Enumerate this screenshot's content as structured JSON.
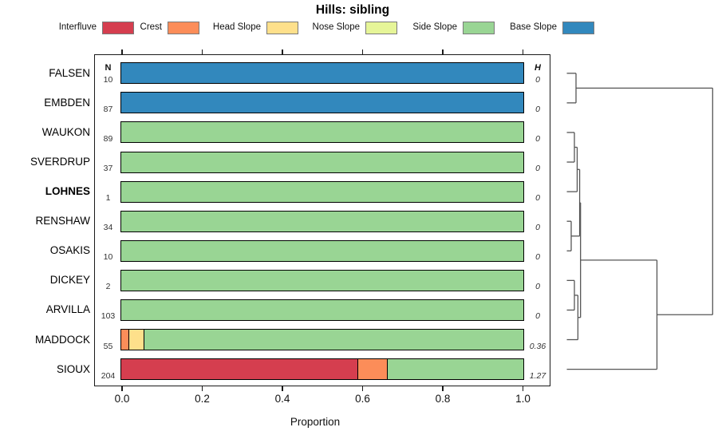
{
  "chart_data": {
    "type": "bar",
    "orientation": "horizontal-stacked",
    "title": "Hills: sibling",
    "xlabel": "Proportion",
    "xlim": [
      0,
      1
    ],
    "xticks": [
      0.0,
      0.2,
      0.4,
      0.6,
      0.8,
      1.0
    ],
    "xtick_labels": [
      "0.0",
      "0.2",
      "0.4",
      "0.6",
      "0.8",
      "1.0"
    ],
    "n_header": "N",
    "h_header": "H",
    "grid": false,
    "legend_position": "top",
    "legend": [
      {
        "label": "Interfluve",
        "key": "interfluve"
      },
      {
        "label": "Crest",
        "key": "crest"
      },
      {
        "label": "Head Slope",
        "key": "head_slope"
      },
      {
        "label": "Nose Slope",
        "key": "nose_slope"
      },
      {
        "label": "Side Slope",
        "key": "side_slope"
      },
      {
        "label": "Base Slope",
        "key": "base_slope"
      }
    ],
    "colors": {
      "interfluve": "#D53E4F",
      "crest": "#FC8D59",
      "head_slope": "#FEE08B",
      "nose_slope": "#E6F598",
      "side_slope": "#99D594",
      "base_slope": "#3288BD"
    },
    "rows": [
      {
        "label": "FALSEN",
        "bold": false,
        "n": "10",
        "h": "0",
        "segments": [
          [
            "base_slope",
            1.0
          ]
        ]
      },
      {
        "label": "EMBDEN",
        "bold": false,
        "n": "87",
        "h": "0",
        "segments": [
          [
            "base_slope",
            1.0
          ]
        ]
      },
      {
        "label": "WAUKON",
        "bold": false,
        "n": "89",
        "h": "0",
        "segments": [
          [
            "side_slope",
            1.0
          ]
        ]
      },
      {
        "label": "SVERDRUP",
        "bold": false,
        "n": "37",
        "h": "0",
        "segments": [
          [
            "side_slope",
            1.0
          ]
        ]
      },
      {
        "label": "LOHNES",
        "bold": true,
        "n": "1",
        "h": "0",
        "segments": [
          [
            "side_slope",
            1.0
          ]
        ]
      },
      {
        "label": "RENSHAW",
        "bold": false,
        "n": "34",
        "h": "0",
        "segments": [
          [
            "side_slope",
            1.0
          ]
        ]
      },
      {
        "label": "OSAKIS",
        "bold": false,
        "n": "10",
        "h": "0",
        "segments": [
          [
            "side_slope",
            1.0
          ]
        ]
      },
      {
        "label": "DICKEY",
        "bold": false,
        "n": "2",
        "h": "0",
        "segments": [
          [
            "side_slope",
            1.0
          ]
        ]
      },
      {
        "label": "ARVILLA",
        "bold": false,
        "n": "103",
        "h": "0",
        "segments": [
          [
            "side_slope",
            1.0
          ]
        ]
      },
      {
        "label": "MADDOCK",
        "bold": false,
        "n": "55",
        "h": "0.36",
        "segments": [
          [
            "crest",
            0.018
          ],
          [
            "head_slope",
            0.037
          ],
          [
            "side_slope",
            0.945
          ]
        ]
      },
      {
        "label": "SIOUX",
        "bold": false,
        "n": "204",
        "h": "1.27",
        "segments": [
          [
            "interfluve",
            0.588
          ],
          [
            "crest",
            0.074
          ],
          [
            "side_slope",
            0.338
          ]
        ]
      }
    ],
    "dendrogram": {
      "line_color": "#555555",
      "merges": [
        {
          "id": "m1",
          "a": "FALSEN",
          "b": "EMBDEN",
          "h": 0.063
        },
        {
          "id": "m2",
          "a": "WAUKON",
          "b": "SVERDRUP",
          "h": 0.052
        },
        {
          "id": "m3",
          "a": "m2",
          "b": "LOHNES",
          "h": 0.071
        },
        {
          "id": "m4",
          "a": "RENSHAW",
          "b": "OSAKIS",
          "h": 0.03
        },
        {
          "id": "m5",
          "a": "m3",
          "b": "m4",
          "h": 0.088
        },
        {
          "id": "m6",
          "a": "DICKEY",
          "b": "ARVILLA",
          "h": 0.052
        },
        {
          "id": "m7",
          "a": "m6",
          "b": "MADDOCK",
          "h": 0.076
        },
        {
          "id": "m8",
          "a": "m5",
          "b": "m7",
          "h": 0.094
        },
        {
          "id": "m9",
          "a": "m8",
          "b": "SIOUX",
          "h": 0.618
        },
        {
          "id": "m10",
          "a": "m1",
          "b": "m9",
          "h": 1.0
        }
      ]
    }
  }
}
